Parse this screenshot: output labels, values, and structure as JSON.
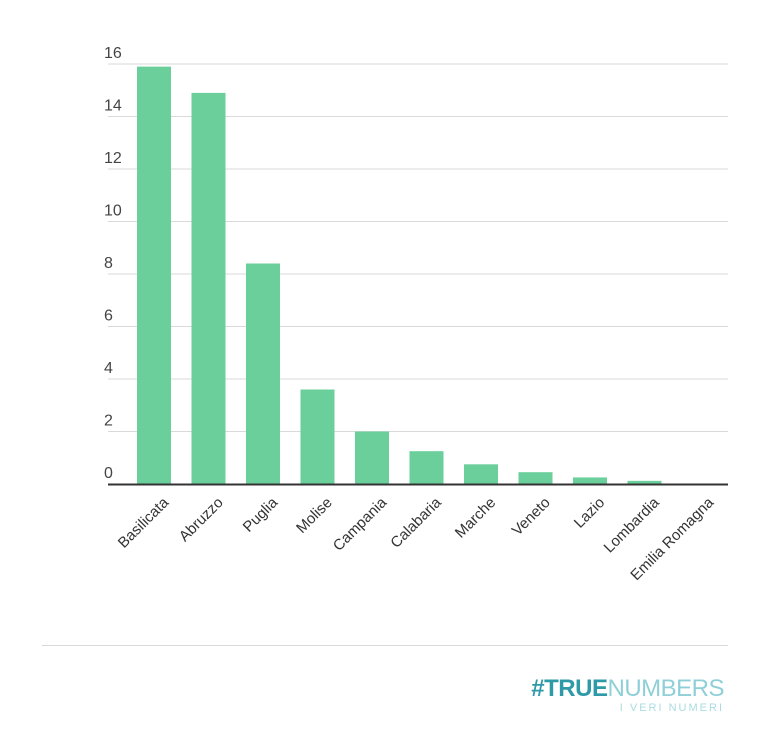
{
  "chart_data": {
    "type": "bar",
    "categories": [
      "Basilicata",
      "Abruzzo",
      "Puglia",
      "Molise",
      "Campania",
      "Calabaria",
      "Marche",
      "Veneto",
      "Lazio",
      "Lombardia",
      "Emilia Romagna"
    ],
    "values": [
      15.9,
      14.9,
      8.4,
      3.6,
      2.0,
      1.25,
      0.75,
      0.45,
      0.25,
      0.12,
      0.02
    ],
    "title": "",
    "xlabel": "",
    "ylabel": "",
    "ylim": [
      0,
      16
    ],
    "yticks": [
      "0",
      "2",
      "4",
      "6",
      "8",
      "10",
      "12",
      "14",
      "16"
    ],
    "grid": true,
    "bar_color": "#6bcf9b"
  },
  "brand": {
    "hash": "#",
    "true": "TRUE",
    "numbers": "NUMBERS",
    "tagline": "I VERI NUMERI"
  },
  "colors": {
    "grid": "#d9d9d9",
    "axis": "#333333",
    "brand_dark": "#2f9aa7",
    "brand_light": "#8fd0d8"
  }
}
